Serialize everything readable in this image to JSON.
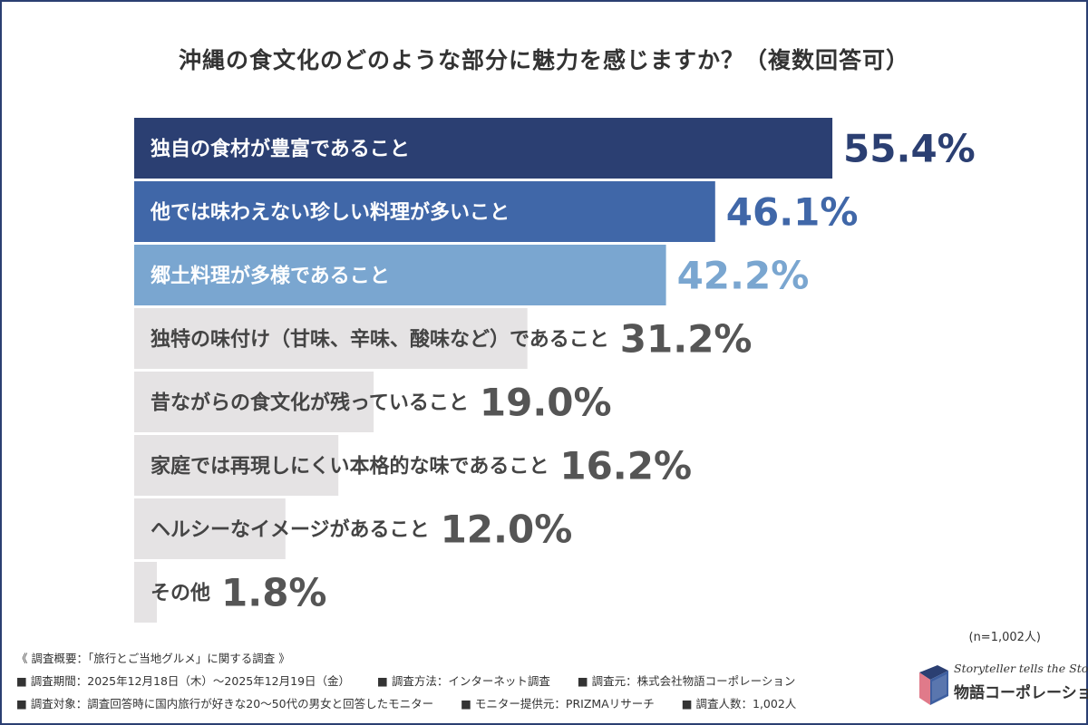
{
  "title": "沖縄の食文化のどのような部分に魅力を感じますか？（複数回答可）",
  "chart_data": {
    "type": "bar",
    "orientation": "horizontal",
    "categories": [
      "独自の食材が豊富であること",
      "他では味わえない珍しい料理が多いこと",
      "郷土料理が多様であること",
      "独特の味付け（甘味、辛味、酸味など）であること",
      "昔ながらの食文化が残っていること",
      "家庭では再現しにくい本格的な味であること",
      "ヘルシーなイメージがあること",
      "その他"
    ],
    "values": [
      55.4,
      46.1,
      42.2,
      31.2,
      19.0,
      16.2,
      12.0,
      1.8
    ],
    "value_labels": [
      "55.4%",
      "46.1%",
      "42.2%",
      "31.2%",
      "19.0%",
      "16.2%",
      "12.0%",
      "1.8%"
    ],
    "bar_colors": [
      "#2b3f72",
      "#4067a8",
      "#7aa6d0",
      "#e5e3e4",
      "#e5e3e4",
      "#e5e3e4",
      "#e5e3e4",
      "#e5e3e4"
    ],
    "label_colors": [
      "#2b3f72",
      "#4067a8",
      "#7aa6d0",
      "#555555",
      "#555555",
      "#555555",
      "#555555",
      "#555555"
    ],
    "category_text_colors": [
      "#ffffff",
      "#ffffff",
      "#ffffff",
      "#444444",
      "#444444",
      "#444444",
      "#444444",
      "#444444"
    ],
    "xlim": [
      0,
      60
    ],
    "grid": false
  },
  "sample_note": "(n=1,002人)",
  "survey": {
    "heading": "《 調査概要：「旅行とご当地グルメ」に関する調査 》",
    "period": "調査期間：2025年12月18日（木）〜2025年12月19日（金）",
    "method": "調査方法：インターネット調査",
    "source": "調査元：株式会社物語コーポレーション",
    "target": "調査対象：調査回答時に国内旅行が好きな20〜50代の男女と回答したモニター",
    "provider": "モニター提供元：PRIZMAリサーチ",
    "count": "調査人数：1,002人"
  },
  "logo": {
    "tagline": "Storyteller tells the Story",
    "name": "物語コーポレーション",
    "icon": "book-icon"
  }
}
